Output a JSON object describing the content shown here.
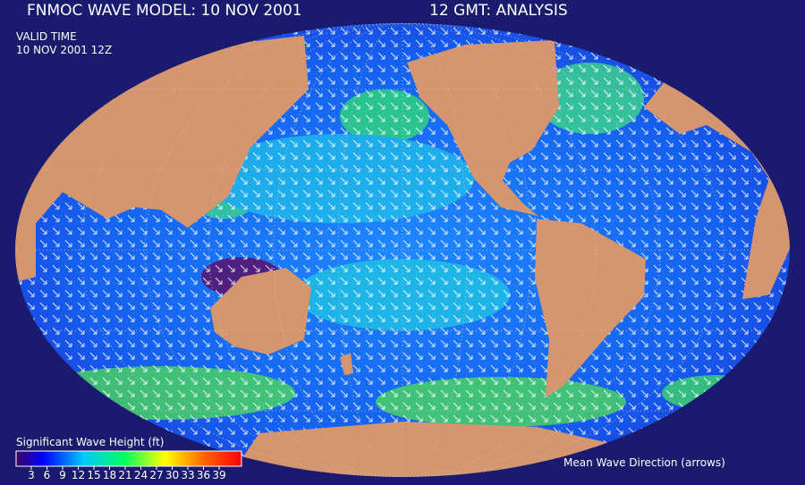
{
  "header": {
    "title": "FNMOC WAVE MODEL: 10 NOV 2001",
    "time": "12 GMT:  ANALYSIS"
  },
  "valid": {
    "label": "VALID TIME",
    "time": "10 NOV 2001 12Z"
  },
  "colorbar": {
    "label": "Significant Wave Height (ft)",
    "ticks": [
      3,
      6,
      9,
      12,
      15,
      18,
      21,
      24,
      27,
      30,
      33,
      36,
      39
    ]
  },
  "note": "Mean Wave Direction (arrows)"
}
